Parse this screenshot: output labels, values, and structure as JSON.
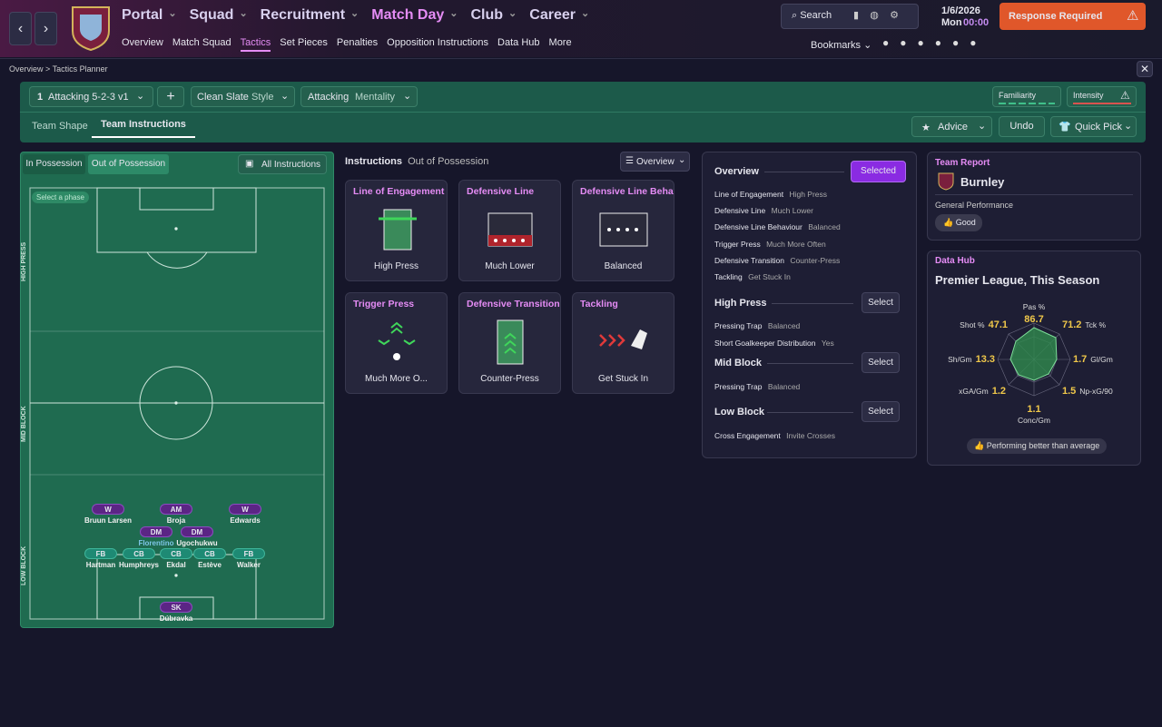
{
  "nav": {
    "menus": [
      "Portal",
      "Squad",
      "Recruitment",
      "Match Day",
      "Club",
      "Career"
    ],
    "submenu": [
      "Overview",
      "Match Squad",
      "Tactics",
      "Set Pieces",
      "Penalties",
      "Opposition Instructions",
      "Data Hub",
      "More"
    ],
    "search": "Search",
    "date": "1/6/2026",
    "day": "Mon",
    "time": "00:00",
    "response": "Response Required",
    "bookmarks": "Bookmarks"
  },
  "breadcrumb": [
    "Overview",
    "Tactics Planner"
  ],
  "toolbar": {
    "tactic_number": "1",
    "tactic": "Attacking 5-2-3 v1",
    "style_value": "Clean Slate",
    "style_label": "Style",
    "mentality_value": "Attacking",
    "mentality_label": "Mentality",
    "familiarity": "Familiarity",
    "intensity": "Intensity"
  },
  "tabs": [
    "Team Shape",
    "Team Instructions"
  ],
  "actions": [
    "Advice",
    "Undo",
    "Quick Pick"
  ],
  "pitch": {
    "toggles": [
      "In Possession",
      "Out of Possession"
    ],
    "all": "All Instructions",
    "phase_hint": "Select a phase",
    "zones": [
      "HIGH PRESS",
      "MID BLOCK",
      "LOW BLOCK"
    ],
    "players": [
      {
        "pos": "W",
        "name": "Bruun Larsen"
      },
      {
        "pos": "AM",
        "name": "Broja"
      },
      {
        "pos": "W",
        "name": "Edwards"
      },
      {
        "pos": "DM",
        "name": "Florentino"
      },
      {
        "pos": "DM",
        "name": "Ugochukwu"
      },
      {
        "pos": "FB",
        "name": "Hartman"
      },
      {
        "pos": "CB",
        "name": "Humphreys"
      },
      {
        "pos": "CB",
        "name": "Ekdal"
      },
      {
        "pos": "CB",
        "name": "Estève"
      },
      {
        "pos": "FB",
        "name": "Walker"
      },
      {
        "pos": "SK",
        "name": "Dúbravka"
      }
    ]
  },
  "instructions": {
    "title": "Instructions",
    "subtitle": "Out of Possession",
    "view": "Overview",
    "cards": [
      {
        "title": "Line of Engagement",
        "value": "High Press"
      },
      {
        "title": "Defensive Line",
        "value": "Much Lower"
      },
      {
        "title": "Defensive Line Behavic",
        "value": "Balanced"
      },
      {
        "title": "Trigger Press",
        "value": "Much More O..."
      },
      {
        "title": "Defensive Transition",
        "value": "Counter-Press"
      },
      {
        "title": "Tackling",
        "value": "Get Stuck In"
      }
    ]
  },
  "overview": {
    "title": "Overview",
    "button": "Selected",
    "items": [
      {
        "label": "Line of Engagement",
        "value": "High Press"
      },
      {
        "label": "Defensive Line",
        "value": "Much Lower"
      },
      {
        "label": "Defensive Line Behaviour",
        "value": "Balanced"
      },
      {
        "label": "Trigger Press",
        "value": "Much More Often"
      },
      {
        "label": "Defensive Transition",
        "value": "Counter-Press"
      },
      {
        "label": "Tackling",
        "value": "Get Stuck In"
      }
    ],
    "sections": [
      {
        "title": "High Press",
        "button": "Select",
        "items": [
          {
            "label": "Pressing Trap",
            "value": "Balanced"
          },
          {
            "label": "Short Goalkeeper Distribution",
            "value": "Yes"
          }
        ]
      },
      {
        "title": "Mid Block",
        "button": "Select",
        "items": [
          {
            "label": "Pressing Trap",
            "value": "Balanced"
          }
        ]
      },
      {
        "title": "Low Block",
        "button": "Select",
        "items": [
          {
            "label": "Cross Engagement",
            "value": "Invite Crosses"
          }
        ]
      }
    ]
  },
  "team_report": {
    "title": "Team Report",
    "team": "Burnley",
    "label": "General Performance",
    "rating": "Good"
  },
  "data_hub": {
    "title": "Data Hub",
    "subtitle": "Premier League, This Season",
    "stats": [
      {
        "label": "Pas %",
        "value": 86.7
      },
      {
        "label": "Tck %",
        "value": 71.2
      },
      {
        "label": "Gl/Gm",
        "value": 1.7
      },
      {
        "label": "Np-xG/90",
        "value": 1.5
      },
      {
        "label": "Conc/Gm",
        "value": 1.1
      },
      {
        "label": "xGA/Gm",
        "value": 1.2
      },
      {
        "label": "Sh/Gm",
        "value": 13.3
      },
      {
        "label": "Shot %",
        "value": 47.1
      }
    ],
    "footer": "Performing better than average"
  }
}
